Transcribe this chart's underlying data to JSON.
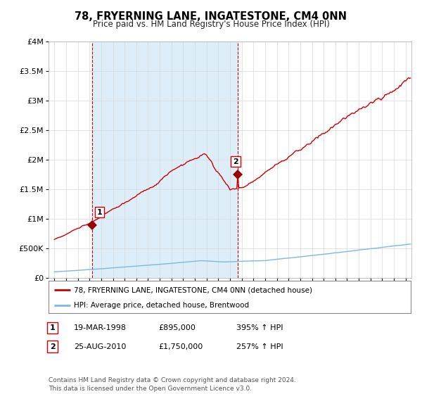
{
  "title": "78, FRYERNING LANE, INGATESTONE, CM4 0NN",
  "subtitle": "Price paid vs. HM Land Registry's House Price Index (HPI)",
  "legend_line1": "78, FRYERNING LANE, INGATESTONE, CM4 0NN (detached house)",
  "legend_line2": "HPI: Average price, detached house, Brentwood",
  "footnote": "Contains HM Land Registry data © Crown copyright and database right 2024.\nThis data is licensed under the Open Government Licence v3.0.",
  "sale1_label": "1",
  "sale1_date": "19-MAR-1998",
  "sale1_price": "£895,000",
  "sale1_hpi": "395% ↑ HPI",
  "sale1_year": 1998.22,
  "sale1_value": 895000,
  "sale2_label": "2",
  "sale2_date": "25-AUG-2010",
  "sale2_price": "£1,750,000",
  "sale2_hpi": "257% ↑ HPI",
  "sale2_year": 2010.64,
  "sale2_value": 1750000,
  "hpi_color": "#7ab8e8",
  "price_color": "#cc0000",
  "marker_color": "#990000",
  "dashed_line_color": "#cc0000",
  "shade_color": "#deeef8",
  "ylim_min": 0,
  "ylim_max": 4000000,
  "yticks": [
    0,
    500000,
    1000000,
    1500000,
    2000000,
    2500000,
    3000000,
    3500000,
    4000000
  ],
  "xlim_min": 1994.5,
  "xlim_max": 2025.5,
  "bg_color": "#ffffff",
  "grid_color": "#d8d8d8",
  "title_fontsize": 11,
  "subtitle_fontsize": 9
}
